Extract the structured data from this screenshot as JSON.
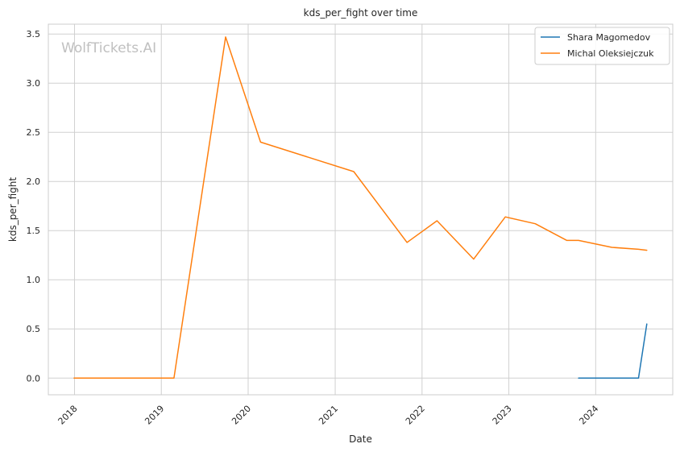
{
  "watermark": "WolfTickets.AI",
  "chart_data": {
    "type": "line",
    "title": "kds_per_fight over time",
    "xlabel": "Date",
    "ylabel": "kds_per_fight",
    "x_axis_type": "date",
    "xlim": [
      "2017-09-13",
      "2024-11-20"
    ],
    "ylim": [
      -0.17,
      3.6
    ],
    "x_ticks": [
      "2018",
      "2019",
      "2020",
      "2021",
      "2022",
      "2023",
      "2024"
    ],
    "y_ticks": [
      "0.0",
      "0.5",
      "1.0",
      "1.5",
      "2.0",
      "2.5",
      "3.0",
      "3.5"
    ],
    "grid": true,
    "legend_position": "top-right",
    "series": [
      {
        "name": "Shara Magomedov",
        "color": "#1f77b4",
        "points": [
          {
            "x": "2023-10-21",
            "y": 0.0
          },
          {
            "x": "2024-03-09",
            "y": 0.0
          },
          {
            "x": "2024-06-29",
            "y": 0.0
          },
          {
            "x": "2024-08-03",
            "y": 0.55
          }
        ]
      },
      {
        "name": "Michal Oleksiejczuk",
        "color": "#ff7f0e",
        "points": [
          {
            "x": "2017-12-30",
            "y": 0.0
          },
          {
            "x": "2019-02-23",
            "y": 0.0
          },
          {
            "x": "2019-09-28",
            "y": 3.47
          },
          {
            "x": "2020-02-22",
            "y": 2.4
          },
          {
            "x": "2021-03-20",
            "y": 2.1
          },
          {
            "x": "2021-10-30",
            "y": 1.38
          },
          {
            "x": "2022-03-05",
            "y": 1.6
          },
          {
            "x": "2022-08-06",
            "y": 1.21
          },
          {
            "x": "2022-12-17",
            "y": 1.64
          },
          {
            "x": "2023-04-22",
            "y": 1.57
          },
          {
            "x": "2023-09-02",
            "y": 1.4
          },
          {
            "x": "2023-10-21",
            "y": 1.4
          },
          {
            "x": "2024-03-09",
            "y": 1.33
          },
          {
            "x": "2024-06-29",
            "y": 1.31
          },
          {
            "x": "2024-08-03",
            "y": 1.3
          }
        ]
      }
    ]
  }
}
